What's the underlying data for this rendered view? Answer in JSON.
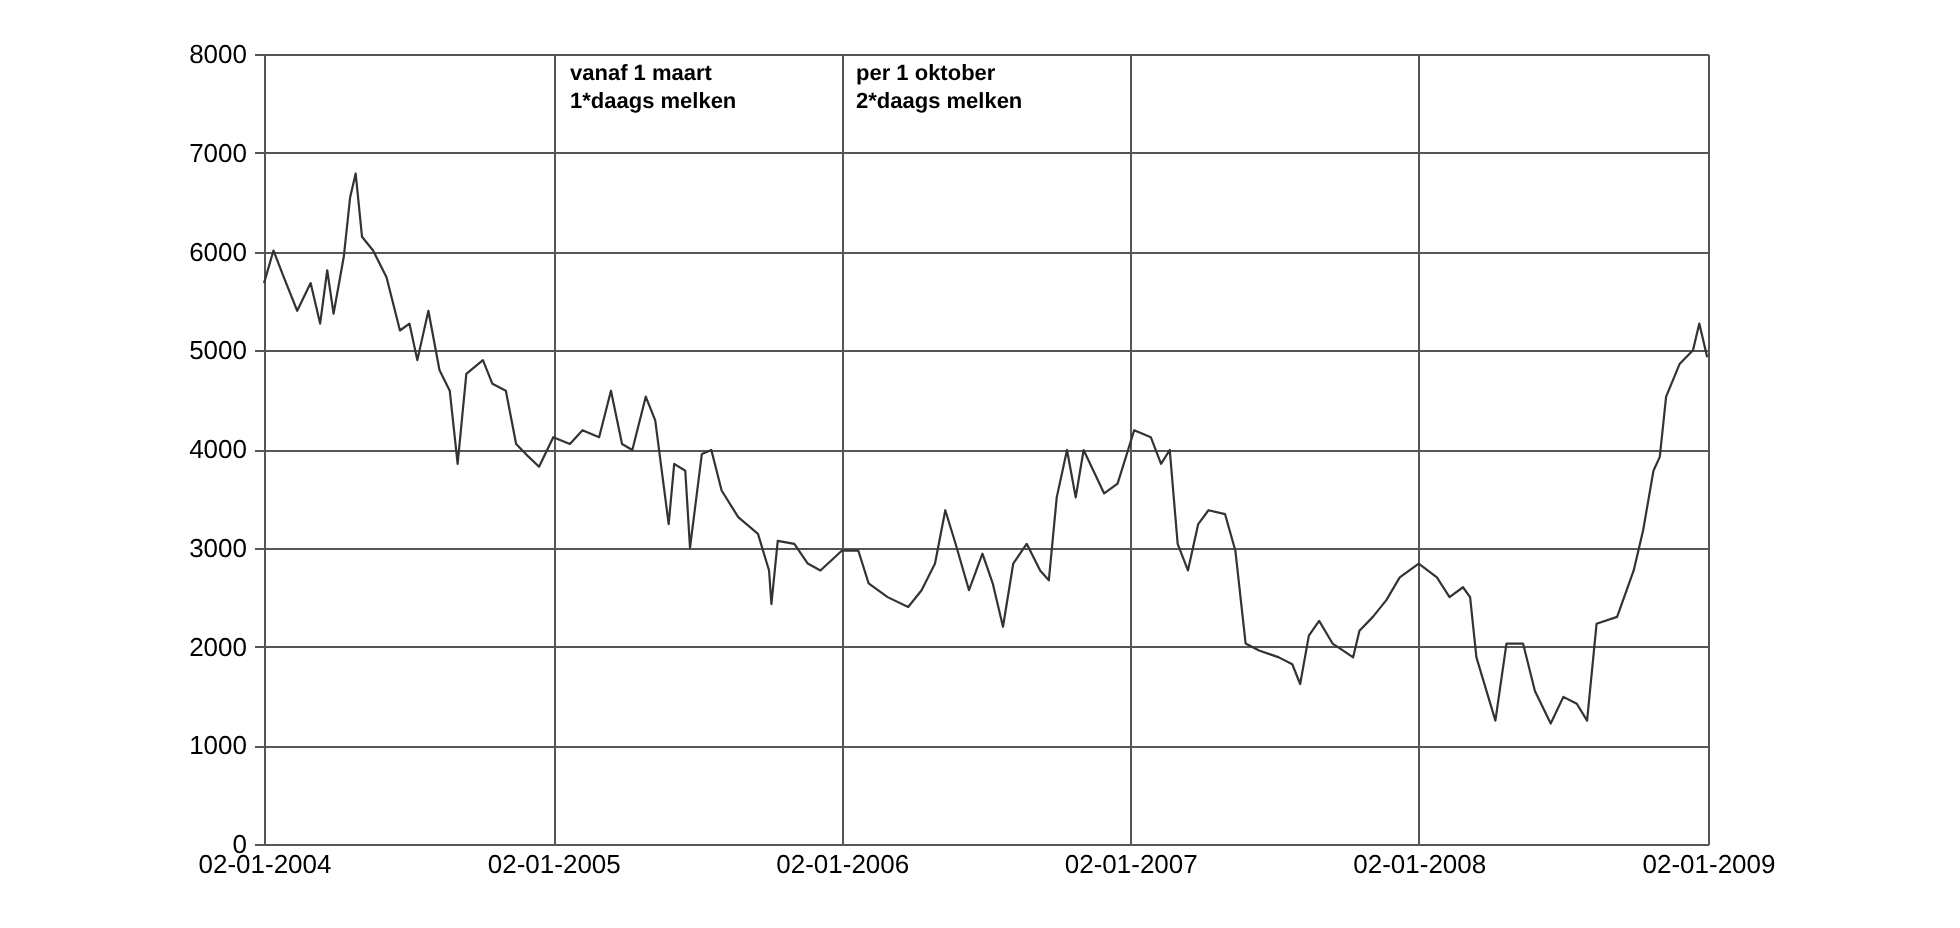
{
  "chart_data": {
    "type": "line",
    "annotations": [
      "vanaf 1 maart\n1*daags melken",
      "per 1 oktober\n2*daags melken"
    ],
    "x": [
      "2004-01-02",
      "2004-01-14",
      "2004-01-27",
      "2004-02-13",
      "2004-03-01",
      "2004-03-13",
      "2004-03-22",
      "2004-03-30",
      "2004-04-12",
      "2004-04-20",
      "2004-04-27",
      "2004-05-05",
      "2004-05-19",
      "2004-06-05",
      "2004-06-22",
      "2004-07-04",
      "2004-07-14",
      "2004-07-28",
      "2004-08-11",
      "2004-08-24",
      "2004-09-03",
      "2004-09-14",
      "2004-10-05",
      "2004-10-17",
      "2004-11-03",
      "2004-11-16",
      "2004-12-02",
      "2004-12-15",
      "2005-01-02",
      "2005-01-23",
      "2005-02-08",
      "2005-03-01",
      "2005-03-16",
      "2005-03-30",
      "2005-04-12",
      "2005-04-29",
      "2005-05-11",
      "2005-05-28",
      "2005-06-04",
      "2005-06-18",
      "2005-06-24",
      "2005-07-09",
      "2005-07-21",
      "2005-08-03",
      "2005-08-24",
      "2005-09-18",
      "2005-10-02",
      "2005-10-05",
      "2005-10-13",
      "2005-11-03",
      "2005-11-20",
      "2005-12-06",
      "2006-01-02",
      "2006-01-23",
      "2006-02-05",
      "2006-03-01",
      "2006-03-27",
      "2006-04-13",
      "2006-04-30",
      "2006-05-13",
      "2006-05-26",
      "2006-06-12",
      "2006-06-29",
      "2006-07-12",
      "2006-07-25",
      "2006-08-07",
      "2006-08-24",
      "2006-09-10",
      "2006-09-21",
      "2006-10-01",
      "2006-10-14",
      "2006-10-25",
      "2006-11-04",
      "2006-11-30",
      "2006-12-17",
      "2007-01-07",
      "2007-01-28",
      "2007-02-10",
      "2007-02-21",
      "2007-03-03",
      "2007-03-16",
      "2007-03-29",
      "2007-04-11",
      "2007-05-02",
      "2007-05-15",
      "2007-05-28",
      "2007-06-14",
      "2007-07-09",
      "2007-07-26",
      "2007-08-05",
      "2007-08-16",
      "2007-08-29",
      "2007-09-15",
      "2007-09-28",
      "2007-10-11",
      "2007-10-19",
      "2007-11-05",
      "2007-11-22",
      "2007-12-09",
      "2008-01-02",
      "2008-01-25",
      "2008-02-10",
      "2008-02-27",
      "2008-03-07",
      "2008-03-15",
      "2008-04-08",
      "2008-04-22",
      "2008-05-13",
      "2008-05-28",
      "2008-06-17",
      "2008-07-03",
      "2008-07-20",
      "2008-08-02",
      "2008-08-14",
      "2008-09-09",
      "2008-09-30",
      "2008-10-12",
      "2008-10-25",
      "2008-11-02",
      "2008-11-10",
      "2008-11-27",
      "2008-12-14",
      "2008-12-22",
      "2009-01-01"
    ],
    "series": [
      {
        "color": "#333333",
        "values": [
          5680,
          6010,
          5740,
          5400,
          5680,
          5270,
          5810,
          5370,
          5950,
          6550,
          6790,
          6150,
          6010,
          5740,
          5200,
          5270,
          4900,
          5400,
          4800,
          4590,
          3850,
          4760,
          4900,
          4660,
          4590,
          4050,
          3920,
          3820,
          4120,
          4050,
          4190,
          4120,
          4590,
          4050,
          3990,
          4530,
          4290,
          3240,
          3850,
          3780,
          3000,
          3950,
          3990,
          3580,
          3310,
          3140,
          2770,
          2430,
          3070,
          3040,
          2840,
          2770,
          2970,
          2970,
          2640,
          2500,
          2400,
          2570,
          2840,
          3380,
          3040,
          2570,
          2940,
          2640,
          2200,
          2840,
          3040,
          2770,
          2670,
          3510,
          3990,
          3510,
          3990,
          3550,
          3650,
          4190,
          4120,
          3850,
          3990,
          3040,
          2770,
          3240,
          3380,
          3340,
          2970,
          2030,
          1960,
          1890,
          1820,
          1620,
          2110,
          2260,
          2030,
          1960,
          1890,
          2160,
          2300,
          2470,
          2700,
          2840,
          2700,
          2500,
          2600,
          2500,
          1890,
          1250,
          2030,
          2030,
          1550,
          1220,
          1490,
          1420,
          1250,
          2230,
          2300,
          2770,
          3180,
          3780,
          3920,
          4530,
          4860,
          5000,
          5270,
          4930
        ]
      }
    ],
    "xlim": [
      "2004-01-02",
      "2009-01-02"
    ],
    "xticks": [
      {
        "value": "2004-01-02",
        "label": "02-01-2004"
      },
      {
        "value": "2005-01-02",
        "label": "02-01-2005"
      },
      {
        "value": "2006-01-02",
        "label": "02-01-2006"
      },
      {
        "value": "2007-01-02",
        "label": "02-01-2007"
      },
      {
        "value": "2008-01-02",
        "label": "02-01-2008"
      },
      {
        "value": "2009-01-02",
        "label": "02-01-2009"
      }
    ],
    "ylim": [
      0,
      8000
    ],
    "yticks": [
      0,
      1000,
      2000,
      3000,
      4000,
      5000,
      6000,
      7000,
      8000
    ],
    "grid": true,
    "legend": false,
    "marker": "none",
    "line_style": "solid"
  }
}
